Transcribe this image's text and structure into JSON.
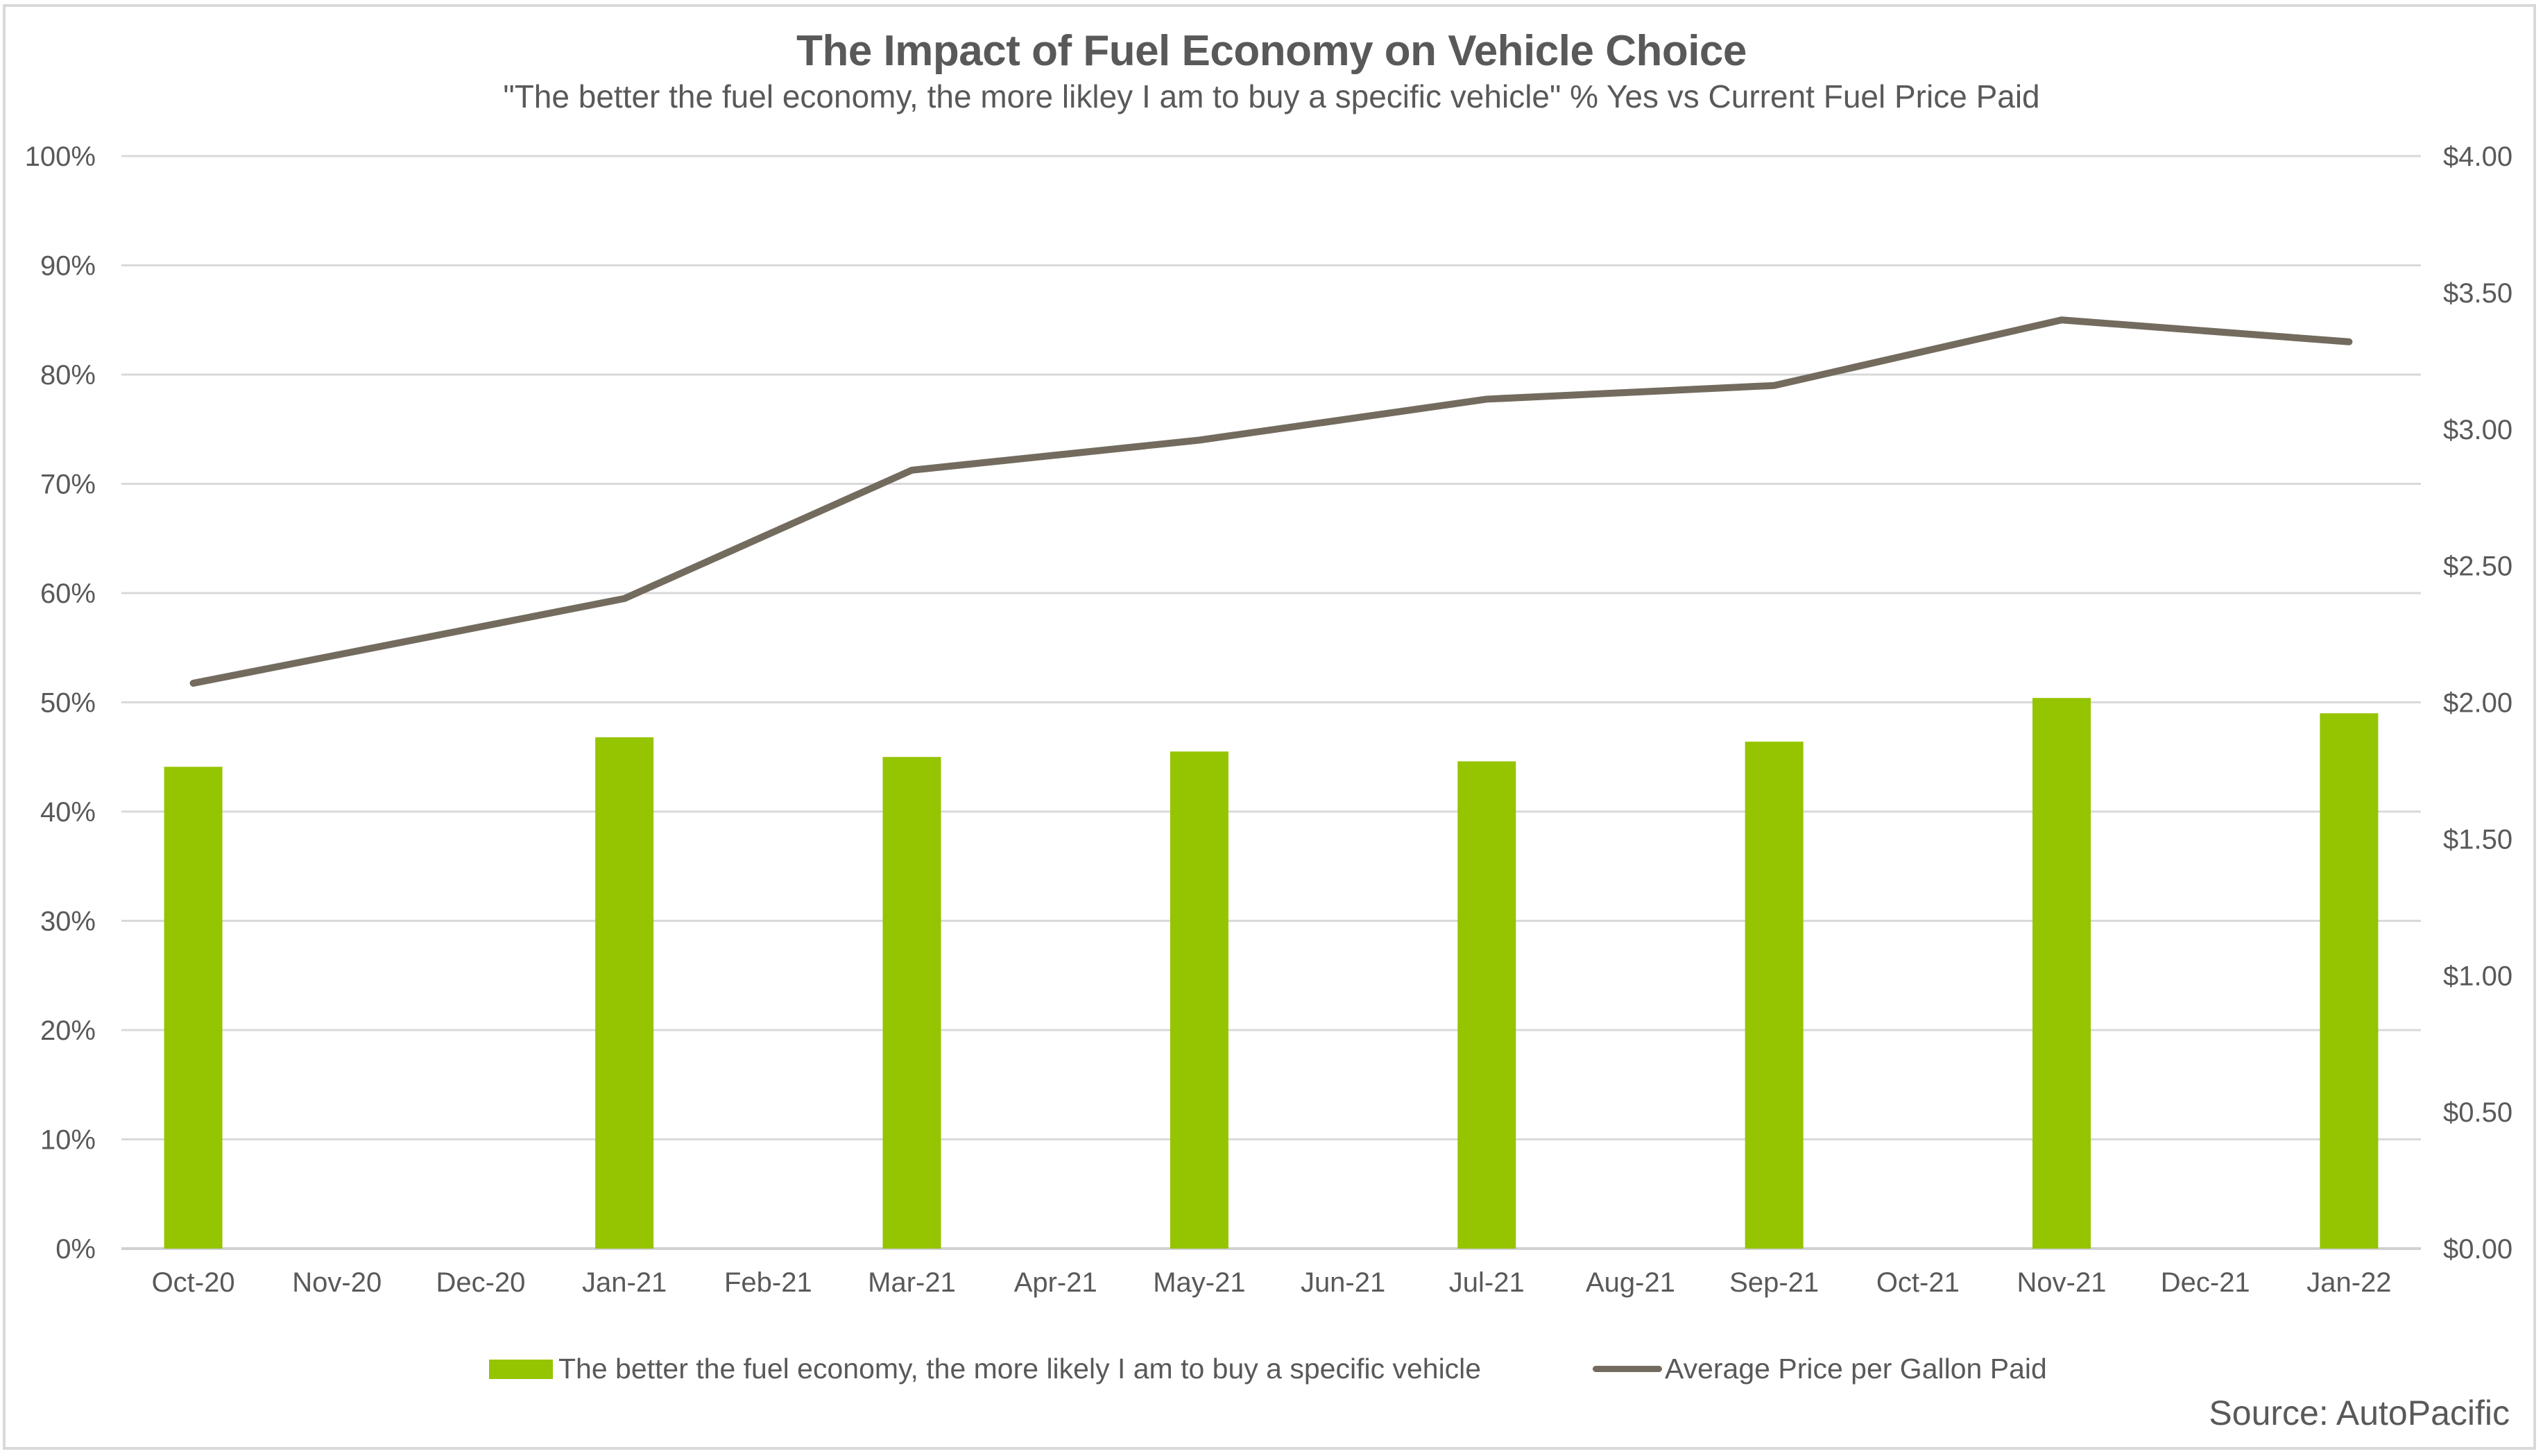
{
  "chart_data": {
    "type": "bar+line",
    "title": "The Impact of Fuel Economy on Vehicle Choice",
    "subtitle": "\"The better the fuel economy, the more likley I am to buy a specific vehicle\" % Yes vs Current Fuel Price Paid",
    "categories": [
      "Oct-20",
      "Nov-20",
      "Dec-20",
      "Jan-21",
      "Feb-21",
      "Mar-21",
      "Apr-21",
      "May-21",
      "Jun-21",
      "Jul-21",
      "Aug-21",
      "Sep-21",
      "Oct-21",
      "Nov-21",
      "Dec-21",
      "Jan-22"
    ],
    "series": [
      {
        "name": "The better the fuel economy, the more likely I am to buy a specific vehicle",
        "type": "bar",
        "axis": "left",
        "color": "#95c400",
        "values": [
          44.1,
          null,
          null,
          46.8,
          null,
          45.0,
          null,
          45.5,
          null,
          44.6,
          null,
          46.4,
          null,
          50.4,
          null,
          49.0
        ]
      },
      {
        "name": "Average Price per Gallon Paid",
        "type": "line",
        "axis": "right",
        "color": "#736b5e",
        "values": [
          2.07,
          null,
          null,
          2.38,
          null,
          2.85,
          null,
          2.96,
          null,
          3.11,
          null,
          3.16,
          null,
          3.4,
          null,
          3.32
        ]
      }
    ],
    "y_left": {
      "label": "",
      "range": [
        0,
        100
      ],
      "ticks": [
        "0%",
        "10%",
        "20%",
        "30%",
        "40%",
        "50%",
        "60%",
        "70%",
        "80%",
        "90%",
        "100%"
      ]
    },
    "y_right": {
      "label": "",
      "range": [
        0,
        4
      ],
      "ticks": [
        "$0.00",
        "$0.50",
        "$1.00",
        "$1.50",
        "$2.00",
        "$2.50",
        "$3.00",
        "$3.50",
        "$4.00"
      ]
    },
    "xlabel": "",
    "grid": true,
    "legend_position": "bottom",
    "annotation": "Source: AutoPacific"
  }
}
